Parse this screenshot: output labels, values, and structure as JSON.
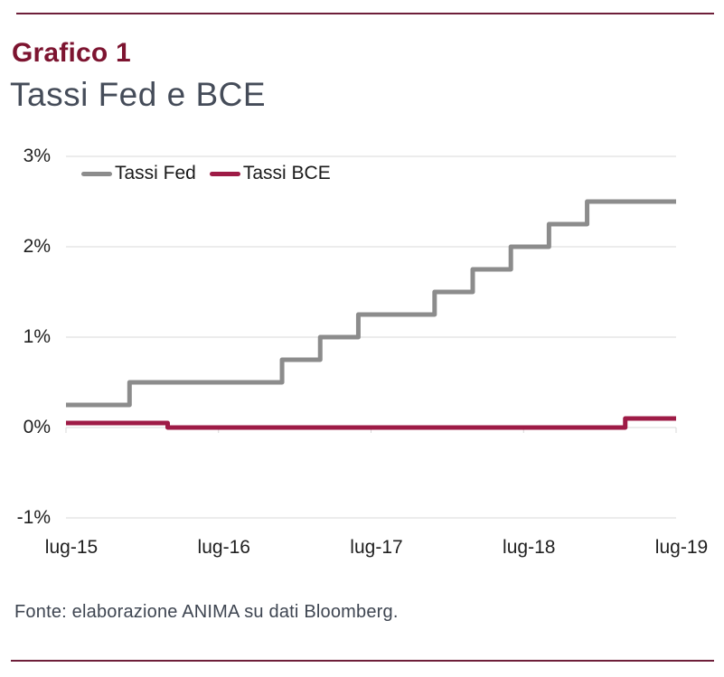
{
  "header": {
    "kicker": "Grafico 1",
    "title": "Tassi Fed e BCE"
  },
  "footer": {
    "source": "Fonte: elaborazione ANIMA su dati Bloomberg."
  },
  "theme": {
    "accent_maroon": "#7d1430",
    "rule_color": "#6e1f3a",
    "grid_color": "#d9d9d9",
    "axis_text_color": "#1f1f1f",
    "subtitle_color": "#454c59"
  },
  "chart_data": {
    "type": "line",
    "subtype": "step",
    "title": "Tassi Fed e BCE",
    "ylabel": "",
    "xlabel": "",
    "ylim": [
      -1,
      3
    ],
    "x_range_months": 48,
    "grid": "horizontal",
    "legend_position": "top-left",
    "y_ticks": [
      {
        "label": "3%",
        "value": 3
      },
      {
        "label": "2%",
        "value": 2
      },
      {
        "label": "1%",
        "value": 1
      },
      {
        "label": "0%",
        "value": 0
      },
      {
        "label": "-1%",
        "value": -1
      }
    ],
    "x_ticks": [
      {
        "label": "lug-15",
        "month": 0
      },
      {
        "label": "lug-16",
        "month": 12
      },
      {
        "label": "lug-17",
        "month": 24
      },
      {
        "label": "lug-18",
        "month": 36
      },
      {
        "label": "lug-19",
        "month": 48
      }
    ],
    "series": [
      {
        "name": "Tassi Fed",
        "color": "#8c8c8c",
        "unit": "%",
        "steps": [
          [
            "lug-15",
            0.25
          ],
          [
            "dic-15",
            0.5
          ],
          [
            "dic-16",
            0.75
          ],
          [
            "mar-17",
            1.0
          ],
          [
            "giu-17",
            1.25
          ],
          [
            "dic-17",
            1.5
          ],
          [
            "mar-18",
            1.75
          ],
          [
            "giu-18",
            2.0
          ],
          [
            "set-18",
            2.25
          ],
          [
            "dic-18",
            2.5
          ]
        ],
        "end": [
          "lug-19",
          2.5
        ]
      },
      {
        "name": "Tassi BCE",
        "color": "#9e1b46",
        "unit": "%",
        "steps": [
          [
            "lug-15",
            0.05
          ],
          [
            "mar-16",
            0.0
          ],
          [
            "mar-19",
            0.1
          ]
        ],
        "end": [
          "lug-19",
          0.1
        ]
      }
    ]
  }
}
